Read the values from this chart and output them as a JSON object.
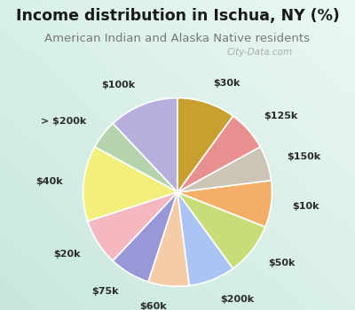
{
  "title": "Income distribution in Ischua, NY (%)",
  "subtitle": "American Indian and Alaska Native residents",
  "background_color": "#00EFEF",
  "labels": [
    "$100k",
    "> $200k",
    "$40k",
    "$20k",
    "$75k",
    "$60k",
    "$200k",
    "$50k",
    "$10k",
    "$150k",
    "$125k",
    "$30k"
  ],
  "values": [
    12,
    5,
    13,
    8,
    7,
    7,
    8,
    9,
    8,
    6,
    7,
    10
  ],
  "colors": [
    "#b8aedd",
    "#b5d4ae",
    "#f2f07a",
    "#f5b8c0",
    "#9898d8",
    "#f5cca8",
    "#aac4f5",
    "#c8dc78",
    "#f5ae68",
    "#ccc4b5",
    "#e89090",
    "#c8a030"
  ],
  "title_color": "#1a1a1a",
  "subtitle_color": "#777777",
  "title_fontsize": 12.5,
  "subtitle_fontsize": 9.5,
  "label_fontsize": 8,
  "wedge_edge_color": "white",
  "wedge_linewidth": 1.2,
  "startangle": 90,
  "label_distance": 1.22,
  "watermark": "City-Data.com",
  "watermark_color": "#a0a0a0"
}
